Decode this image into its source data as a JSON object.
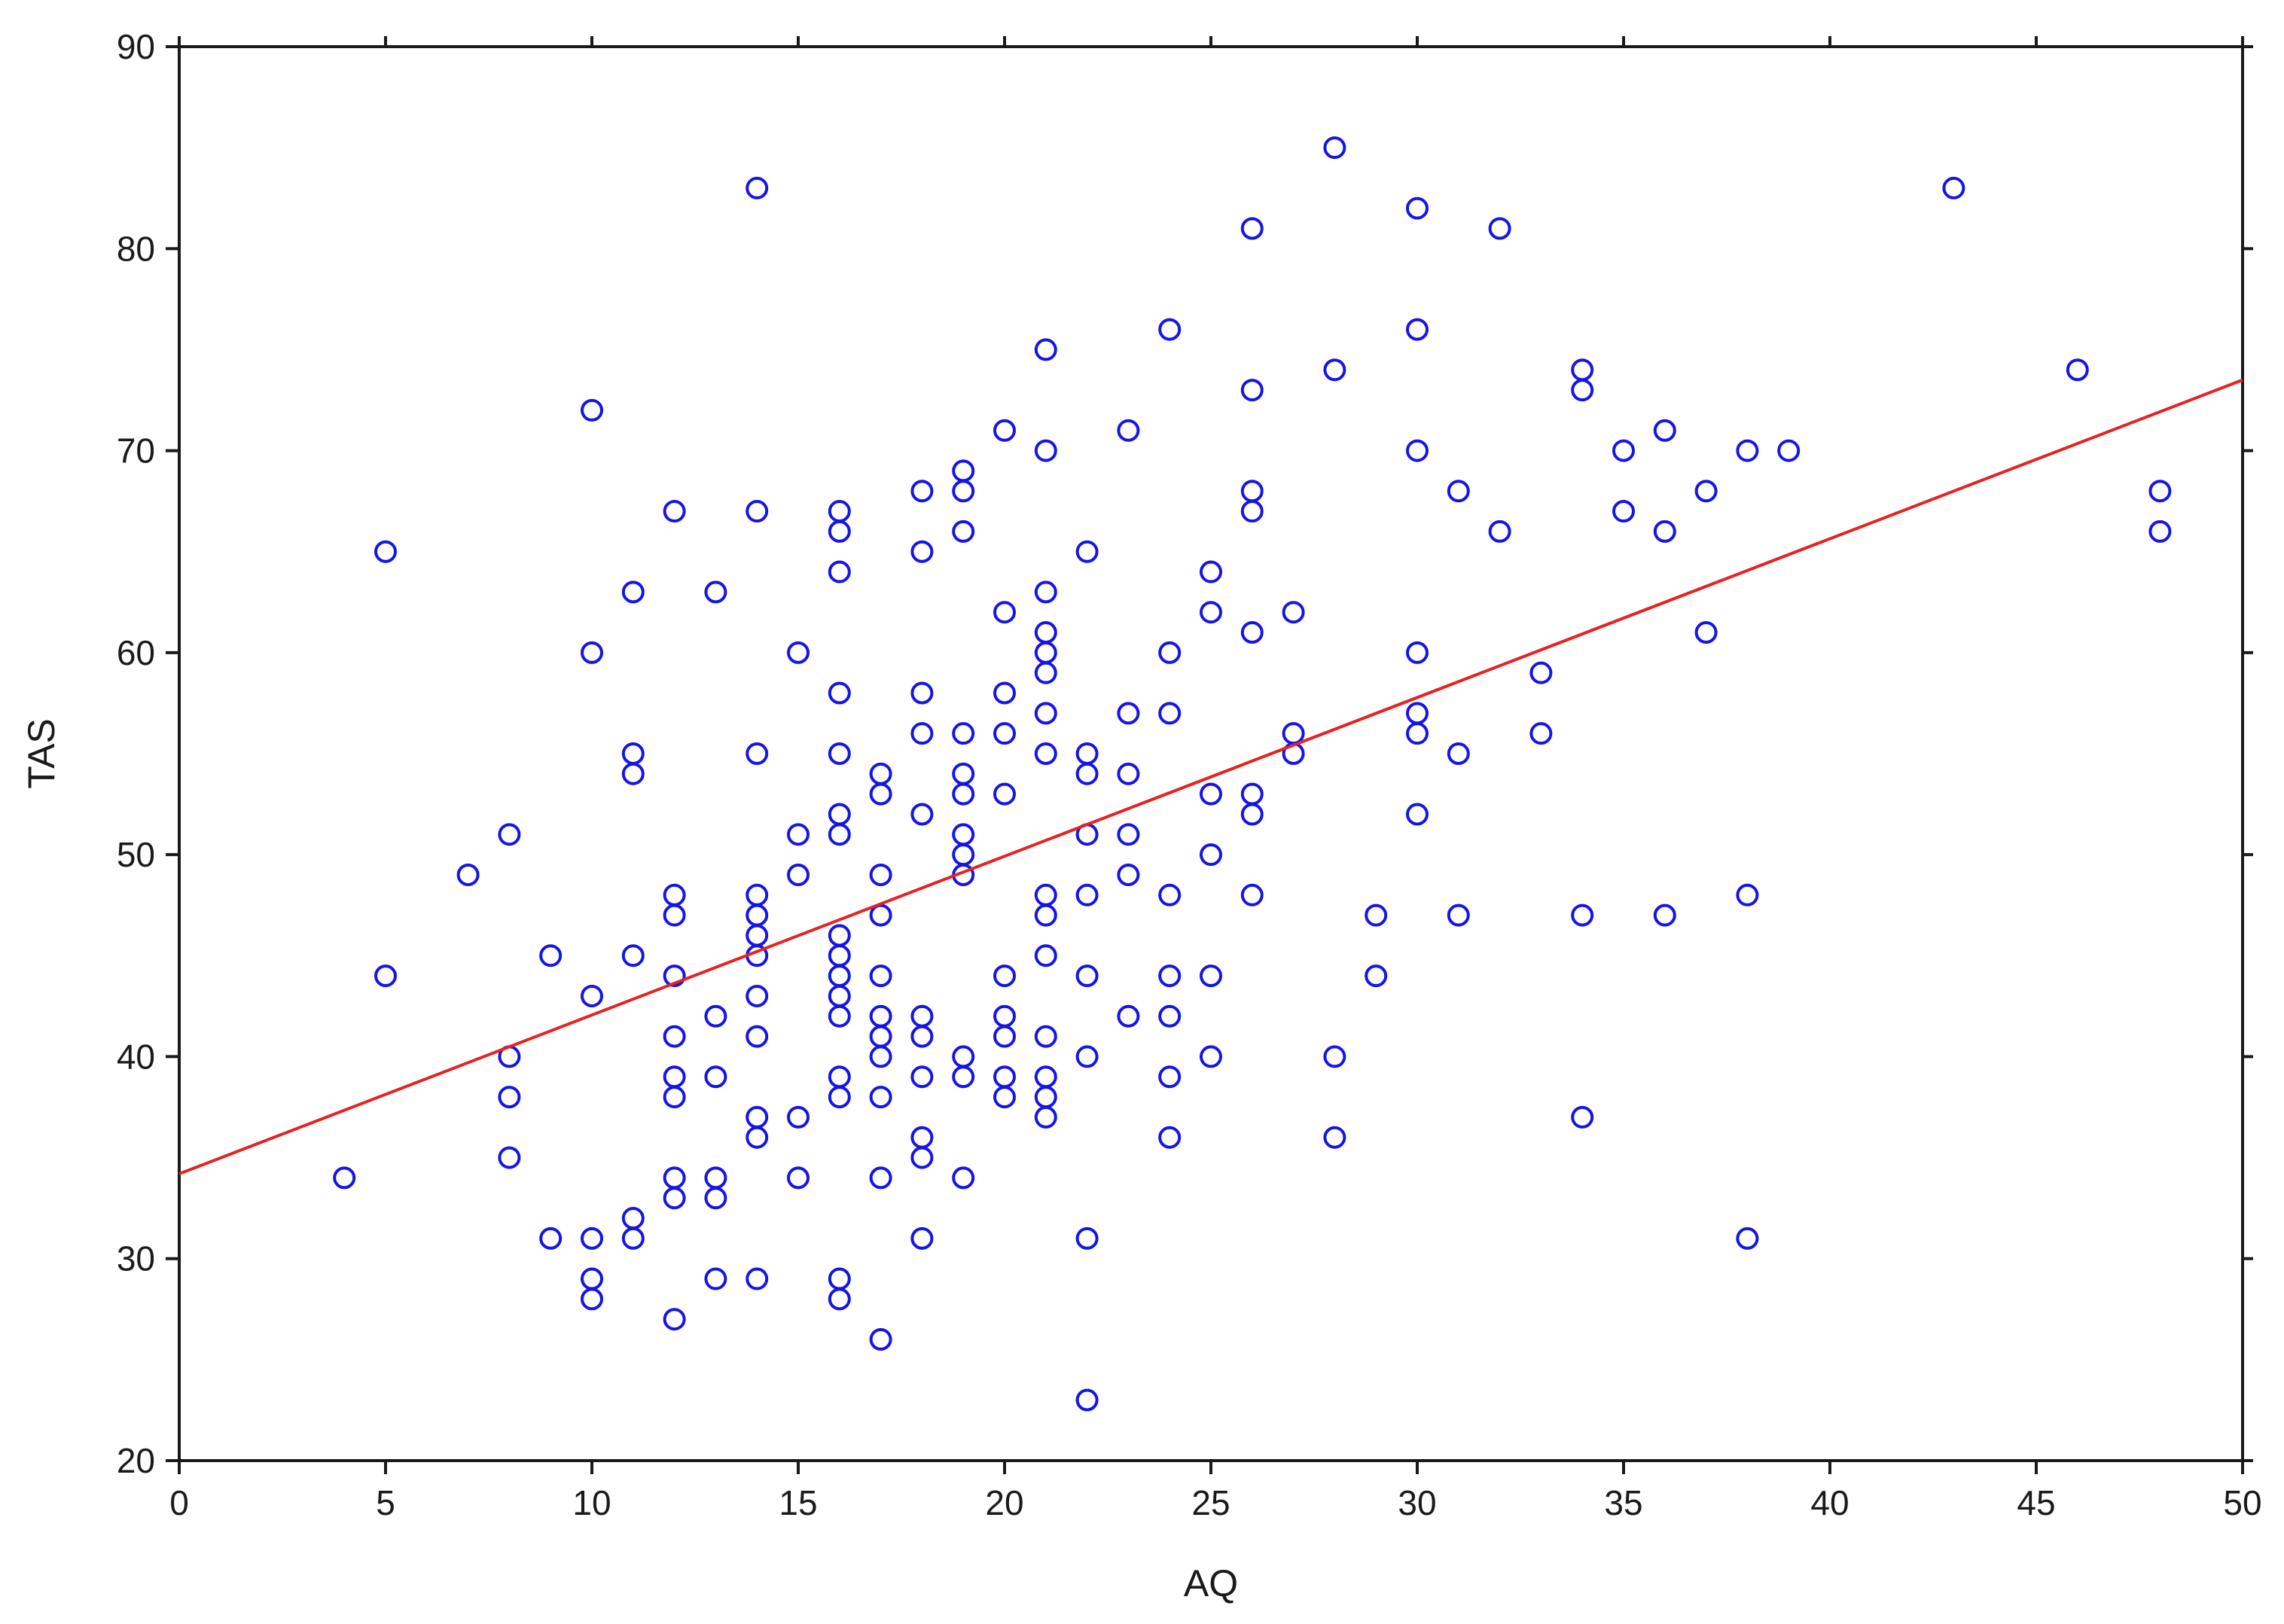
{
  "chart_data": {
    "type": "scatter",
    "xlabel": "AQ",
    "ylabel": "TAS",
    "xlim": [
      0,
      50
    ],
    "ylim": [
      20,
      90
    ],
    "x_ticks": [
      0,
      5,
      10,
      15,
      20,
      25,
      30,
      35,
      40,
      45,
      50
    ],
    "y_ticks": [
      20,
      30,
      40,
      50,
      60,
      70,
      80,
      90
    ],
    "grid": false,
    "legend": "none",
    "colors": {
      "points": "#1515e6",
      "fit_line": "#e62222",
      "axes": "#1a1a1a"
    },
    "series": [
      {
        "marker": "circle-open",
        "points": [
          [
            4,
            34
          ],
          [
            5,
            65
          ],
          [
            5,
            44
          ],
          [
            7,
            49
          ],
          [
            8,
            51
          ],
          [
            8,
            40
          ],
          [
            8,
            38
          ],
          [
            8,
            35
          ],
          [
            9,
            45
          ],
          [
            9,
            31
          ],
          [
            10,
            72
          ],
          [
            10,
            60
          ],
          [
            10,
            43
          ],
          [
            10,
            31
          ],
          [
            10,
            29
          ],
          [
            10,
            28
          ],
          [
            11,
            63
          ],
          [
            11,
            55
          ],
          [
            11,
            54
          ],
          [
            11,
            45
          ],
          [
            11,
            32
          ],
          [
            11,
            31
          ],
          [
            12,
            67
          ],
          [
            12,
            48
          ],
          [
            12,
            47
          ],
          [
            12,
            44
          ],
          [
            12,
            41
          ],
          [
            12,
            39
          ],
          [
            12,
            38
          ],
          [
            12,
            34
          ],
          [
            12,
            33
          ],
          [
            12,
            27
          ],
          [
            13,
            63
          ],
          [
            13,
            42
          ],
          [
            13,
            39
          ],
          [
            13,
            34
          ],
          [
            13,
            33
          ],
          [
            13,
            29
          ],
          [
            14,
            83
          ],
          [
            14,
            67
          ],
          [
            14,
            55
          ],
          [
            14,
            48
          ],
          [
            14,
            47
          ],
          [
            14,
            46
          ],
          [
            14,
            45
          ],
          [
            14,
            43
          ],
          [
            14,
            41
          ],
          [
            14,
            37
          ],
          [
            14,
            36
          ],
          [
            14,
            29
          ],
          [
            15,
            60
          ],
          [
            15,
            51
          ],
          [
            15,
            49
          ],
          [
            15,
            37
          ],
          [
            15,
            34
          ],
          [
            16,
            67
          ],
          [
            16,
            66
          ],
          [
            16,
            64
          ],
          [
            16,
            58
          ],
          [
            16,
            55
          ],
          [
            16,
            52
          ],
          [
            16,
            51
          ],
          [
            16,
            46
          ],
          [
            16,
            45
          ],
          [
            16,
            44
          ],
          [
            16,
            43
          ],
          [
            16,
            42
          ],
          [
            16,
            39
          ],
          [
            16,
            38
          ],
          [
            16,
            29
          ],
          [
            16,
            28
          ],
          [
            17,
            54
          ],
          [
            17,
            53
          ],
          [
            17,
            49
          ],
          [
            17,
            47
          ],
          [
            17,
            44
          ],
          [
            17,
            42
          ],
          [
            17,
            41
          ],
          [
            17,
            40
          ],
          [
            17,
            38
          ],
          [
            17,
            34
          ],
          [
            17,
            26
          ],
          [
            18,
            68
          ],
          [
            18,
            65
          ],
          [
            18,
            58
          ],
          [
            18,
            56
          ],
          [
            18,
            52
          ],
          [
            18,
            42
          ],
          [
            18,
            41
          ],
          [
            18,
            39
          ],
          [
            18,
            36
          ],
          [
            18,
            35
          ],
          [
            18,
            31
          ],
          [
            19,
            69
          ],
          [
            19,
            68
          ],
          [
            19,
            66
          ],
          [
            19,
            56
          ],
          [
            19,
            54
          ],
          [
            19,
            53
          ],
          [
            19,
            51
          ],
          [
            19,
            50
          ],
          [
            19,
            49
          ],
          [
            19,
            40
          ],
          [
            19,
            39
          ],
          [
            19,
            34
          ],
          [
            20,
            71
          ],
          [
            20,
            62
          ],
          [
            20,
            58
          ],
          [
            20,
            56
          ],
          [
            20,
            53
          ],
          [
            20,
            44
          ],
          [
            20,
            42
          ],
          [
            20,
            41
          ],
          [
            20,
            39
          ],
          [
            20,
            38
          ],
          [
            21,
            75
          ],
          [
            21,
            70
          ],
          [
            21,
            63
          ],
          [
            21,
            61
          ],
          [
            21,
            60
          ],
          [
            21,
            59
          ],
          [
            21,
            57
          ],
          [
            21,
            55
          ],
          [
            21,
            48
          ],
          [
            21,
            47
          ],
          [
            21,
            45
          ],
          [
            21,
            41
          ],
          [
            21,
            39
          ],
          [
            21,
            38
          ],
          [
            21,
            37
          ],
          [
            22,
            65
          ],
          [
            22,
            55
          ],
          [
            22,
            54
          ],
          [
            22,
            51
          ],
          [
            22,
            48
          ],
          [
            22,
            44
          ],
          [
            22,
            40
          ],
          [
            22,
            31
          ],
          [
            22,
            23
          ],
          [
            23,
            71
          ],
          [
            23,
            57
          ],
          [
            23,
            54
          ],
          [
            23,
            51
          ],
          [
            23,
            49
          ],
          [
            23,
            42
          ],
          [
            24,
            76
          ],
          [
            24,
            60
          ],
          [
            24,
            57
          ],
          [
            24,
            48
          ],
          [
            24,
            44
          ],
          [
            24,
            42
          ],
          [
            24,
            39
          ],
          [
            24,
            36
          ],
          [
            25,
            64
          ],
          [
            25,
            62
          ],
          [
            25,
            53
          ],
          [
            25,
            50
          ],
          [
            25,
            44
          ],
          [
            25,
            40
          ],
          [
            26,
            81
          ],
          [
            26,
            73
          ],
          [
            26,
            68
          ],
          [
            26,
            67
          ],
          [
            26,
            61
          ],
          [
            26,
            53
          ],
          [
            26,
            52
          ],
          [
            26,
            48
          ],
          [
            27,
            62
          ],
          [
            27,
            56
          ],
          [
            27,
            55
          ],
          [
            28,
            85
          ],
          [
            28,
            74
          ],
          [
            28,
            40
          ],
          [
            28,
            36
          ],
          [
            29,
            47
          ],
          [
            29,
            44
          ],
          [
            30,
            82
          ],
          [
            30,
            76
          ],
          [
            30,
            70
          ],
          [
            30,
            60
          ],
          [
            30,
            57
          ],
          [
            30,
            56
          ],
          [
            30,
            52
          ],
          [
            31,
            68
          ],
          [
            31,
            55
          ],
          [
            31,
            47
          ],
          [
            32,
            81
          ],
          [
            32,
            66
          ],
          [
            33,
            59
          ],
          [
            33,
            56
          ],
          [
            34,
            74
          ],
          [
            34,
            73
          ],
          [
            34,
            47
          ],
          [
            34,
            37
          ],
          [
            35,
            70
          ],
          [
            35,
            67
          ],
          [
            36,
            71
          ],
          [
            36,
            66
          ],
          [
            36,
            47
          ],
          [
            37,
            68
          ],
          [
            37,
            61
          ],
          [
            38,
            70
          ],
          [
            38,
            48
          ],
          [
            38,
            31
          ],
          [
            39,
            70
          ],
          [
            43,
            83
          ],
          [
            46,
            74
          ],
          [
            48,
            68
          ],
          [
            48,
            66
          ]
        ]
      }
    ],
    "fit_line": {
      "x": [
        0,
        50
      ],
      "y": [
        34.2,
        73.5
      ]
    }
  }
}
